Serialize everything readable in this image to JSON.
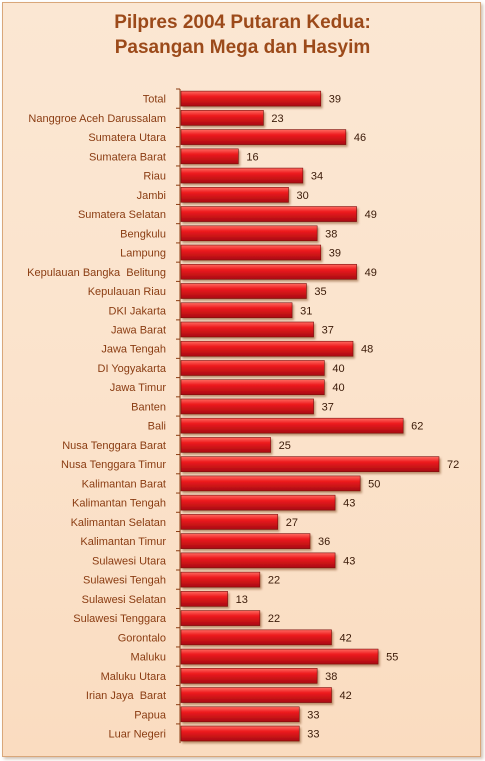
{
  "chart_data": {
    "type": "bar",
    "orientation": "horizontal",
    "title": [
      "Pilpres 2004 Putaran Kedua:",
      "Pasangan Mega dan Hasyim"
    ],
    "xlabel": "",
    "ylabel": "",
    "xlim": [
      0,
      72
    ],
    "grid": false,
    "bar_color": "#e8151b",
    "categories": [
      "Total",
      "Nanggroe Aceh Darussalam",
      "Sumatera Utara",
      "Sumatera Barat",
      "Riau",
      "Jambi",
      "Sumatera Selatan",
      "Bengkulu",
      "Lampung",
      "Kepulauan Bangka  Belitung",
      "Kepulauan Riau",
      "DKI Jakarta",
      "Jawa Barat",
      "Jawa Tengah",
      "DI Yogyakarta",
      "Jawa Timur",
      "Banten",
      "Bali",
      "Nusa Tenggara Barat",
      "Nusa Tenggara Timur",
      "Kalimantan Barat",
      "Kalimantan Tengah",
      "Kalimantan Selatan",
      "Kalimantan Timur",
      "Sulawesi Utara",
      "Sulawesi Tengah",
      "Sulawesi Selatan",
      "Sulawesi Tenggara",
      "Gorontalo",
      "Maluku",
      "Maluku Utara",
      "Irian Jaya  Barat",
      "Papua",
      "Luar Negeri"
    ],
    "values": [
      39,
      23,
      46,
      16,
      34,
      30,
      49,
      38,
      39,
      49,
      35,
      31,
      37,
      48,
      40,
      40,
      37,
      62,
      25,
      72,
      50,
      43,
      27,
      36,
      43,
      22,
      13,
      22,
      42,
      55,
      38,
      42,
      33,
      33
    ]
  }
}
